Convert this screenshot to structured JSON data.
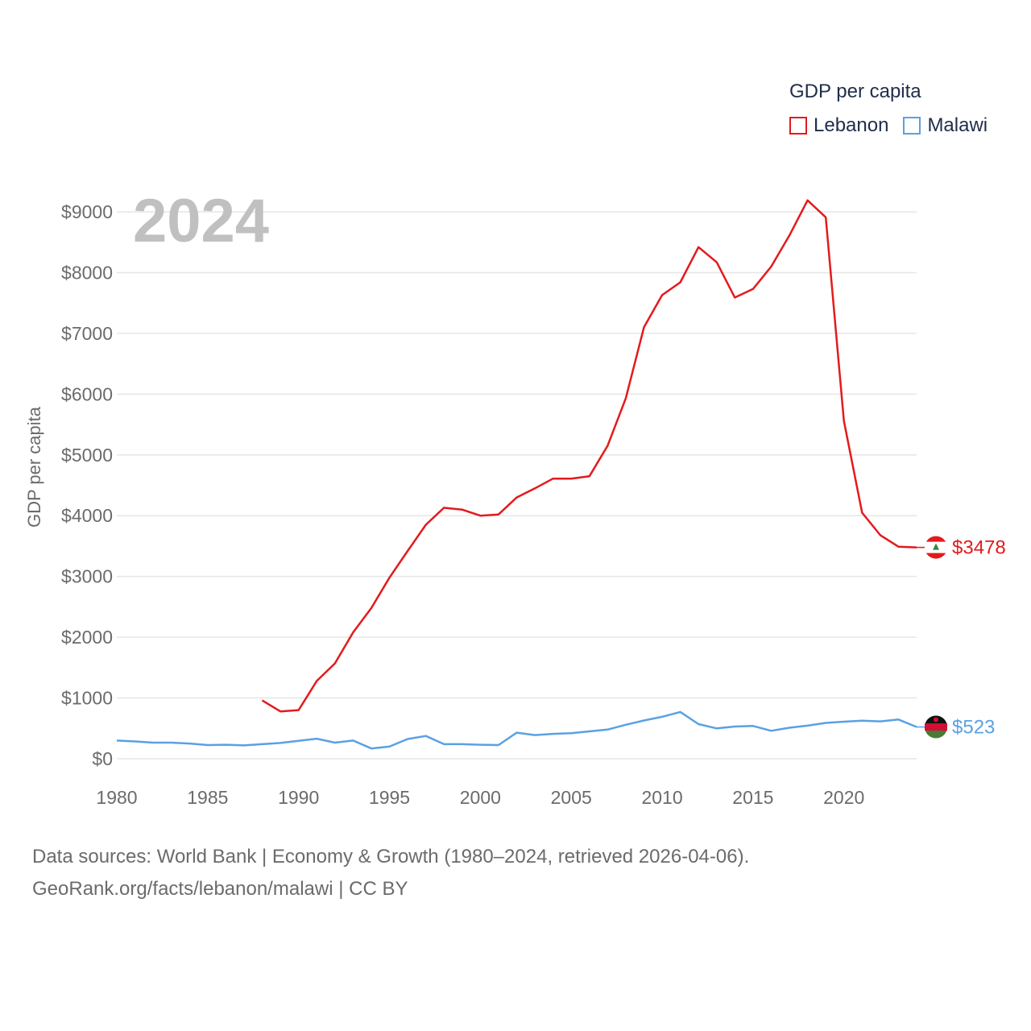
{
  "legend": {
    "title": "GDP per capita",
    "items": [
      {
        "name": "Lebanon",
        "color": "#e31a1c"
      },
      {
        "name": "Malawi",
        "color": "#5aa1e3"
      }
    ]
  },
  "source": {
    "line1": "Data sources: World Bank | Economy & Growth (1980–2024, retrieved 2026-04-06).",
    "line2": "GeoRank.org/facts/lebanon/malawi | CC BY"
  },
  "chart_data": {
    "type": "line",
    "title": "GDP per capita",
    "year_label": "2024",
    "xlabel": "",
    "ylabel": "GDP per capita",
    "xlim": [
      1980,
      2024
    ],
    "ylim": [
      0,
      9000
    ],
    "xticks": [
      1980,
      1985,
      1990,
      1995,
      2000,
      2005,
      2010,
      2015,
      2020
    ],
    "yticks": [
      0,
      1000,
      2000,
      3000,
      4000,
      5000,
      6000,
      7000,
      8000,
      9000
    ],
    "ytick_labels": [
      "$0",
      "$1000",
      "$2000",
      "$3000",
      "$4000",
      "$5000",
      "$6000",
      "$7000",
      "$8000",
      "$9000"
    ],
    "grid": true,
    "series": [
      {
        "name": "Lebanon",
        "color": "#e31a1c",
        "end_label": "$3478",
        "points": [
          [
            1988,
            960
          ],
          [
            1989,
            780
          ],
          [
            1990,
            800
          ],
          [
            1991,
            1280
          ],
          [
            1992,
            1570
          ],
          [
            1993,
            2080
          ],
          [
            1994,
            2480
          ],
          [
            1995,
            2980
          ],
          [
            1996,
            3420
          ],
          [
            1997,
            3850
          ],
          [
            1998,
            4130
          ],
          [
            1999,
            4100
          ],
          [
            2000,
            4000
          ],
          [
            2001,
            4020
          ],
          [
            2002,
            4300
          ],
          [
            2003,
            4450
          ],
          [
            2004,
            4610
          ],
          [
            2005,
            4610
          ],
          [
            2006,
            4650
          ],
          [
            2007,
            5150
          ],
          [
            2008,
            5930
          ],
          [
            2009,
            7100
          ],
          [
            2010,
            7630
          ],
          [
            2011,
            7840
          ],
          [
            2012,
            8420
          ],
          [
            2013,
            8170
          ],
          [
            2014,
            7590
          ],
          [
            2015,
            7730
          ],
          [
            2016,
            8100
          ],
          [
            2017,
            8610
          ],
          [
            2018,
            9190
          ],
          [
            2019,
            8910
          ],
          [
            2020,
            5560
          ],
          [
            2021,
            4050
          ],
          [
            2022,
            3680
          ],
          [
            2023,
            3490
          ],
          [
            2024,
            3478
          ]
        ]
      },
      {
        "name": "Malawi",
        "color": "#5aa1e3",
        "end_label": "$523",
        "points": [
          [
            1980,
            300
          ],
          [
            1981,
            285
          ],
          [
            1982,
            265
          ],
          [
            1983,
            265
          ],
          [
            1984,
            250
          ],
          [
            1985,
            225
          ],
          [
            1986,
            230
          ],
          [
            1987,
            220
          ],
          [
            1988,
            240
          ],
          [
            1989,
            260
          ],
          [
            1990,
            295
          ],
          [
            1991,
            330
          ],
          [
            1992,
            265
          ],
          [
            1993,
            300
          ],
          [
            1994,
            170
          ],
          [
            1995,
            200
          ],
          [
            1996,
            325
          ],
          [
            1997,
            375
          ],
          [
            1998,
            240
          ],
          [
            1999,
            240
          ],
          [
            2000,
            230
          ],
          [
            2001,
            225
          ],
          [
            2002,
            430
          ],
          [
            2003,
            390
          ],
          [
            2004,
            410
          ],
          [
            2005,
            420
          ],
          [
            2006,
            450
          ],
          [
            2007,
            480
          ],
          [
            2008,
            560
          ],
          [
            2009,
            630
          ],
          [
            2010,
            690
          ],
          [
            2011,
            770
          ],
          [
            2012,
            570
          ],
          [
            2013,
            500
          ],
          [
            2014,
            530
          ],
          [
            2015,
            540
          ],
          [
            2016,
            460
          ],
          [
            2017,
            510
          ],
          [
            2018,
            545
          ],
          [
            2019,
            590
          ],
          [
            2020,
            610
          ],
          [
            2021,
            625
          ],
          [
            2022,
            615
          ],
          [
            2023,
            645
          ],
          [
            2024,
            523
          ]
        ]
      }
    ]
  }
}
